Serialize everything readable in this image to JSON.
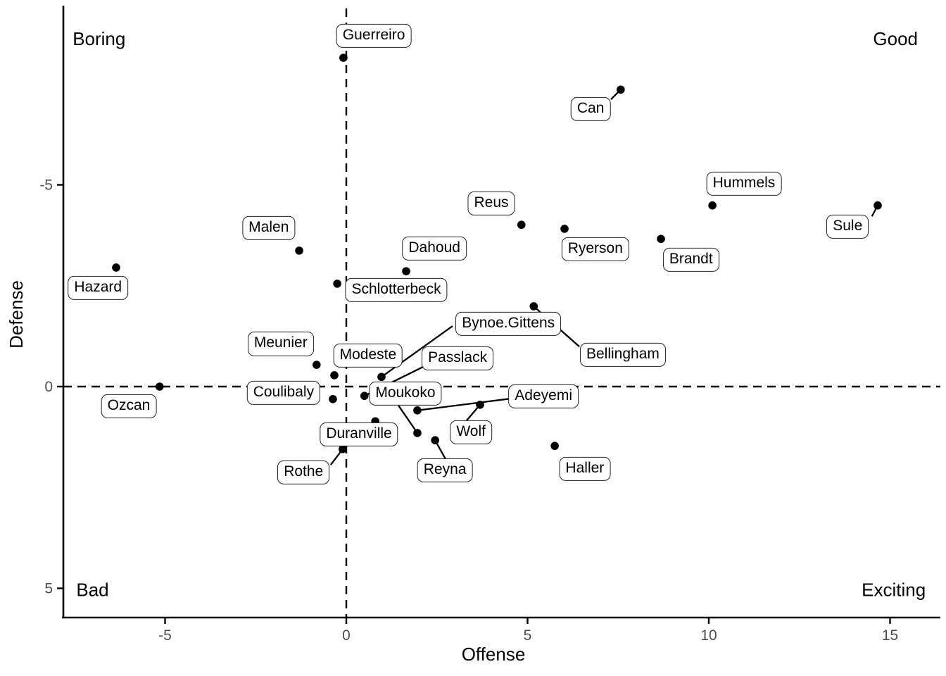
{
  "chart_data": {
    "type": "scatter",
    "title": "",
    "xlabel": "Offense",
    "ylabel": "Defense",
    "x_ticks": [
      -5,
      0,
      5,
      10,
      15
    ],
    "y_ticks": [
      -5,
      0,
      5
    ],
    "xlim": [
      -7.8,
      16.4
    ],
    "ylim": [
      -9.45,
      5.72
    ],
    "y_axis_reversed": true,
    "grid": false,
    "reference_lines": [
      {
        "axis": "x",
        "value": 0,
        "style": "dashed"
      },
      {
        "axis": "y",
        "value": 0,
        "style": "dashed"
      }
    ],
    "quadrant_labels": [
      {
        "text": "Boring",
        "x": -6.82,
        "y": -8.6
      },
      {
        "text": "Good",
        "x": 15.15,
        "y": -8.6
      },
      {
        "text": "Bad",
        "x": -7.0,
        "y": 5.05
      },
      {
        "text": "Exciting",
        "x": 15.1,
        "y": 5.05
      }
    ],
    "points": [
      {
        "name": "Guerreiro",
        "x": -0.08,
        "y": -8.15,
        "label": {
          "x": 0.76,
          "y": -8.69
        },
        "anchor": null
      },
      {
        "name": "Can",
        "x": 7.57,
        "y": -7.36,
        "label": {
          "x": 6.74,
          "y": -6.88
        },
        "anchor": {
          "x": 7.3,
          "y": -7.12
        }
      },
      {
        "name": "Hummels",
        "x": 10.1,
        "y": -4.49,
        "label": {
          "x": 10.97,
          "y": -5.03
        },
        "anchor": null
      },
      {
        "name": "Sule",
        "x": 14.66,
        "y": -4.49,
        "label": {
          "x": 13.83,
          "y": -3.96
        },
        "anchor": {
          "x": 14.5,
          "y": -4.22
        }
      },
      {
        "name": "Reus",
        "x": 4.83,
        "y": -4.01,
        "label": {
          "x": 4.0,
          "y": -4.54
        },
        "anchor": null
      },
      {
        "name": "Ryerson",
        "x": 6.02,
        "y": -3.91,
        "label": {
          "x": 6.87,
          "y": -3.4
        },
        "anchor": null
      },
      {
        "name": "Brandt",
        "x": 8.68,
        "y": -3.66,
        "label": {
          "x": 9.51,
          "y": -3.14
        },
        "anchor": null
      },
      {
        "name": "Malen",
        "x": -1.3,
        "y": -3.37,
        "label": {
          "x": -2.14,
          "y": -3.93
        },
        "anchor": null
      },
      {
        "name": "Hazard",
        "x": -6.35,
        "y": -2.95,
        "label": {
          "x": -6.85,
          "y": -2.44
        },
        "anchor": null
      },
      {
        "name": "Dahoud",
        "x": 1.65,
        "y": -2.86,
        "label": {
          "x": 2.43,
          "y": -3.42
        },
        "anchor": null
      },
      {
        "name": "Schlotterbeck",
        "x": -0.25,
        "y": -2.55,
        "label": {
          "x": 1.38,
          "y": -2.39
        },
        "anchor": null
      },
      {
        "name": "Bellingham",
        "x": 5.17,
        "y": -1.99,
        "label": {
          "x": 7.63,
          "y": -0.79
        },
        "anchor": {
          "x": 6.43,
          "y": -0.99
        }
      },
      {
        "name": "Meunier",
        "x": -0.82,
        "y": -0.54,
        "label": {
          "x": -1.81,
          "y": -1.06
        },
        "anchor": null
      },
      {
        "name": "Modeste",
        "x": -0.33,
        "y": -0.28,
        "label": {
          "x": 0.6,
          "y": -0.77
        },
        "anchor": null
      },
      {
        "name": "Bynoe.Gittens",
        "x": 0.97,
        "y": -0.24,
        "label": {
          "x": 4.47,
          "y": -1.55
        },
        "anchor": {
          "x": 2.93,
          "y": -1.5
        }
      },
      {
        "name": "Ozcan",
        "x": -5.15,
        "y": 0.0,
        "label": {
          "x": -6.0,
          "y": 0.49
        },
        "anchor": null
      },
      {
        "name": "Passlack",
        "x": 0.5,
        "y": 0.23,
        "label": {
          "x": 3.07,
          "y": -0.7
        },
        "anchor": {
          "x": 2.12,
          "y": -0.49
        }
      },
      {
        "name": "Coulibaly",
        "x": -0.37,
        "y": 0.31,
        "label": {
          "x": -1.73,
          "y": 0.16
        },
        "anchor": null
      },
      {
        "name": "Wolf",
        "x": 3.69,
        "y": 0.45,
        "label": {
          "x": 3.44,
          "y": 1.13
        },
        "anchor": {
          "x": 3.32,
          "y": 0.84
        }
      },
      {
        "name": "Adeyemi",
        "x": 1.96,
        "y": 0.59,
        "label": {
          "x": 5.44,
          "y": 0.24
        },
        "anchor": {
          "x": 4.52,
          "y": 0.3
        }
      },
      {
        "name": "Duranville",
        "x": 0.8,
        "y": 0.86,
        "label": {
          "x": 0.35,
          "y": 1.19
        },
        "anchor": null
      },
      {
        "name": "Moukoko",
        "x": 1.96,
        "y": 1.15,
        "label": {
          "x": 1.63,
          "y": 0.17
        },
        "anchor": {
          "x": 1.44,
          "y": 0.47
        }
      },
      {
        "name": "Reyna",
        "x": 2.45,
        "y": 1.33,
        "label": {
          "x": 2.72,
          "y": 2.08
        },
        "anchor": {
          "x": 2.74,
          "y": 1.8
        }
      },
      {
        "name": "Rothe",
        "x": -0.1,
        "y": 1.55,
        "label": {
          "x": -1.18,
          "y": 2.13
        },
        "anchor": {
          "x": -0.43,
          "y": 1.94
        }
      },
      {
        "name": "Haller",
        "x": 5.75,
        "y": 1.47,
        "label": {
          "x": 6.58,
          "y": 2.04
        },
        "anchor": null
      }
    ]
  },
  "colors": {
    "background": "#ffffff",
    "point": "#000000",
    "axis_line": "#000000",
    "tick_text": "#4d4d4d",
    "axis_title": "#000000",
    "annotation_text": "#000000",
    "label_border": "#222222",
    "label_fill": "#ffffff",
    "leader_line": "#000000",
    "dashed_line": "#000000"
  }
}
